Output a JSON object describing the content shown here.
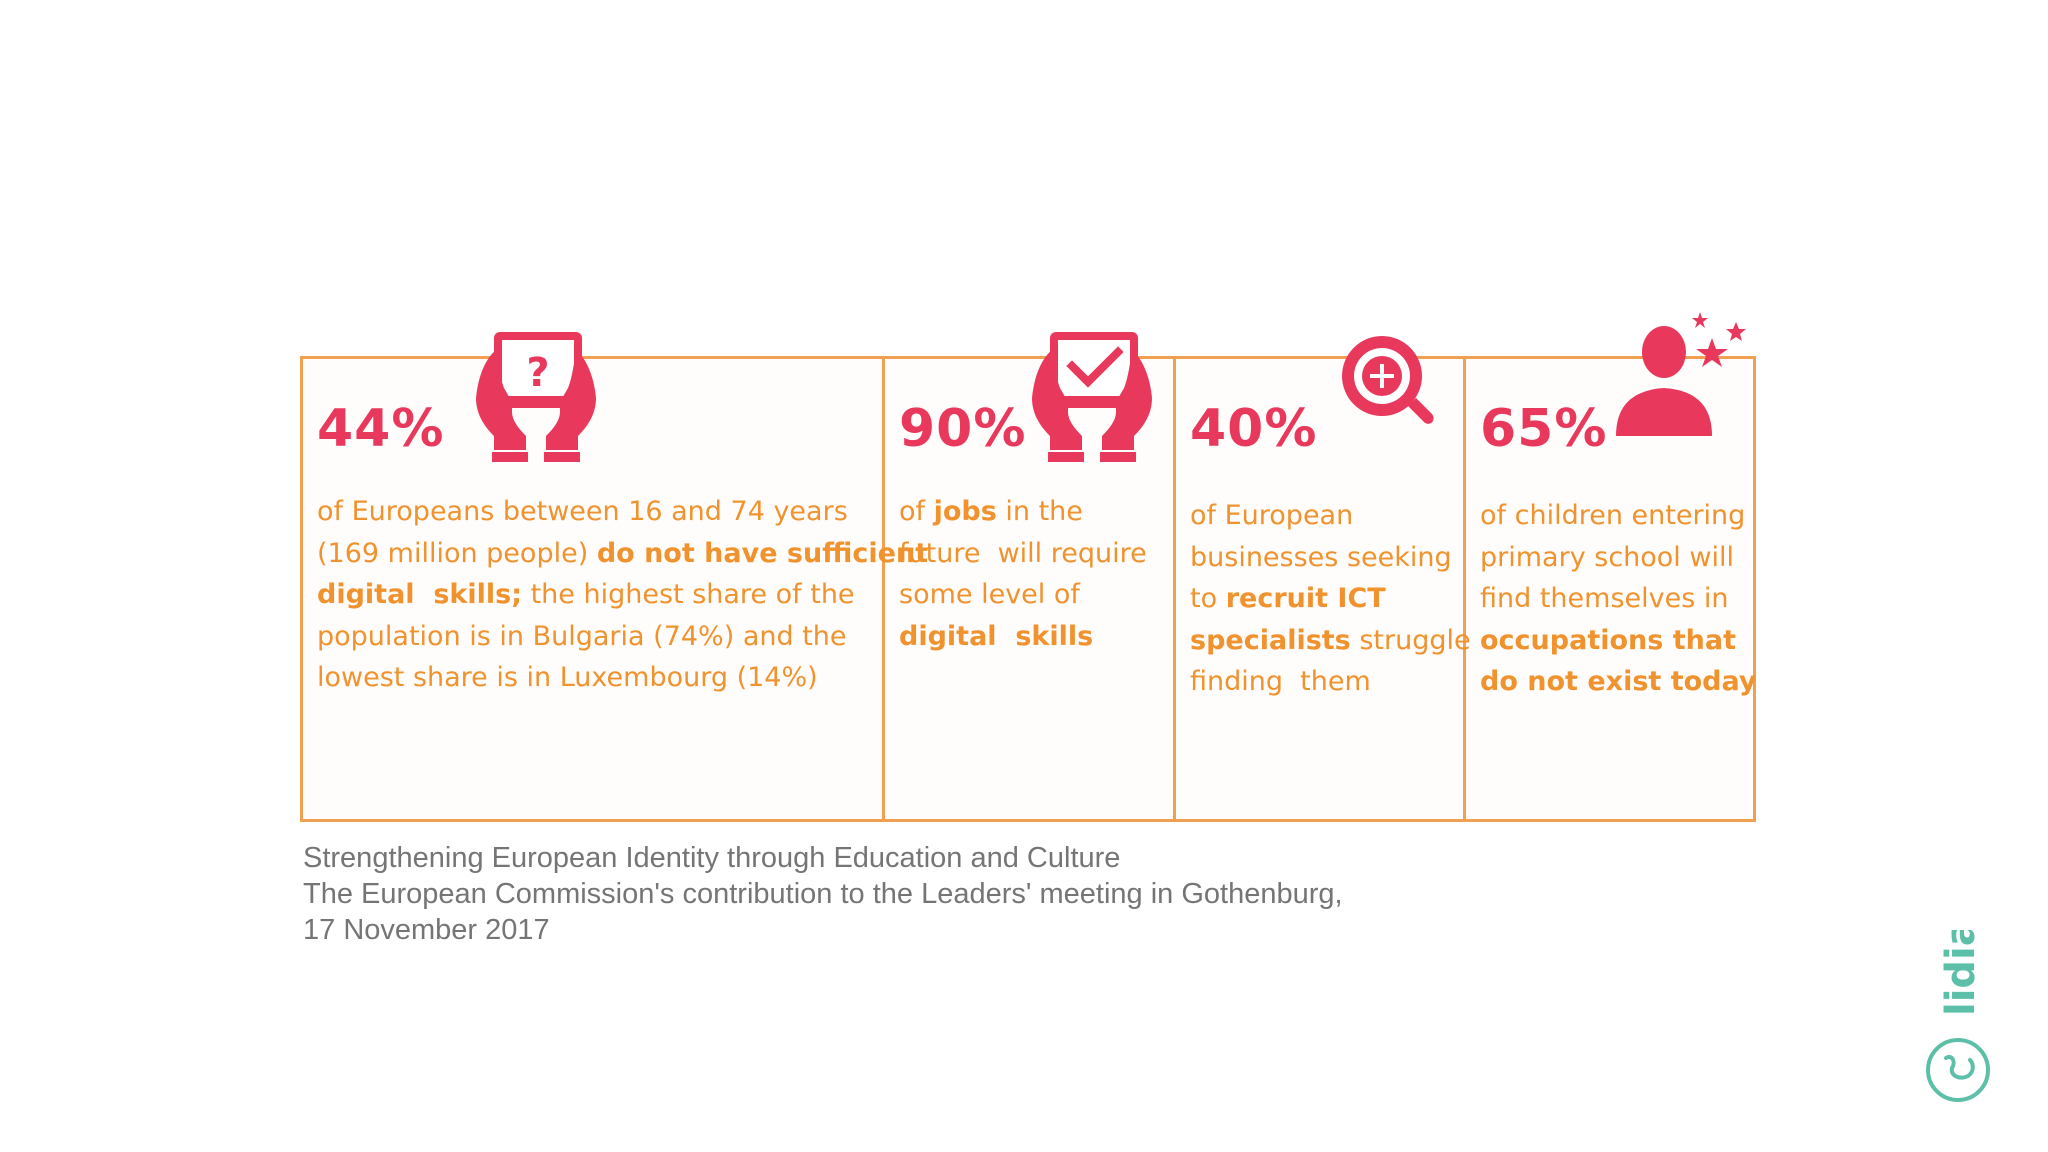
{
  "colors": {
    "accent": "#e8395d",
    "text": "#f0922e",
    "border": "#f0a050",
    "caption": "#757575",
    "logo": "#5cc0a8"
  },
  "stats": [
    {
      "percent": "44%",
      "icon": "tablet-question-icon",
      "lines": [
        [
          {
            "t": "of Europeans between 16 and 74 years"
          }
        ],
        [
          {
            "t": "(169 million people) "
          },
          {
            "t": "do not have sufficient",
            "b": true
          }
        ],
        [
          {
            "t": "digital  skills;",
            "b": true
          },
          {
            "t": " the highest share of the"
          }
        ],
        [
          {
            "t": "population is in Bulgaria (74%) and the"
          }
        ],
        [
          {
            "t": "lowest share is in Luxembourg (14%)"
          }
        ]
      ]
    },
    {
      "percent": "90%",
      "icon": "tablet-check-icon",
      "lines": [
        [
          {
            "t": "of "
          },
          {
            "t": "jobs",
            "b": true
          },
          {
            "t": " in the"
          }
        ],
        [
          {
            "t": "future  will require"
          }
        ],
        [
          {
            "t": "some level of"
          }
        ],
        [
          {
            "t": "digital  skills",
            "b": true
          }
        ]
      ]
    },
    {
      "percent": "40%",
      "icon": "magnifier-plus-icon",
      "lines": [
        [
          {
            "t": "of European"
          }
        ],
        [
          {
            "t": "businesses seeking"
          }
        ],
        [
          {
            "t": "to "
          },
          {
            "t": "recruit ICT",
            "b": true
          }
        ],
        [
          {
            "t": "specialists",
            "b": true
          },
          {
            "t": " struggle"
          }
        ],
        [
          {
            "t": "finding  them"
          }
        ]
      ]
    },
    {
      "percent": "65%",
      "icon": "person-stars-icon",
      "lines": [
        [
          {
            "t": "of children entering"
          }
        ],
        [
          {
            "t": "primary school will"
          }
        ],
        [
          {
            "t": "find themselves in"
          }
        ],
        [
          {
            "t": "occupations that",
            "b": true
          }
        ],
        [
          {
            "t": "do not exist today",
            "b": true
          }
        ]
      ]
    }
  ],
  "source": {
    "line1": "Strengthening European Identity through Education and Culture",
    "line2": "The European Commission's contribution to the Leaders' meeting in Gothenburg,",
    "line3": "17 November 2017"
  },
  "logo": {
    "text": "lidia"
  }
}
